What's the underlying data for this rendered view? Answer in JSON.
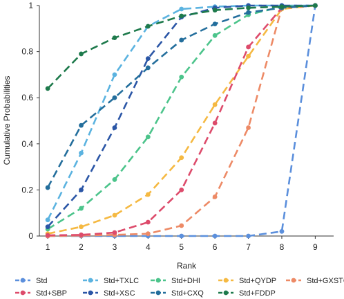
{
  "chart_data": {
    "type": "line",
    "title": "",
    "xlabel": "Rank",
    "ylabel": "Cumulative Probabilities",
    "x": [
      1,
      2,
      3,
      4,
      5,
      6,
      7,
      8,
      9
    ],
    "xlim": [
      0.75,
      9.55
    ],
    "ylim": [
      0,
      1
    ],
    "x_ticks": [
      "1",
      "2",
      "3",
      "4",
      "5",
      "6",
      "7",
      "8",
      "9"
    ],
    "y_ticks": [
      "0",
      "0.2",
      "0.4",
      "0.6",
      "0.8",
      "1"
    ],
    "grid": false,
    "legend_position": "bottom",
    "line_style": "dashed with circle markers",
    "series": [
      {
        "name": "Std",
        "color": "#5b8fdc",
        "values": [
          0.0,
          0.0,
          0.0,
          0.0,
          0.0,
          0.0,
          0.0,
          0.02,
          1.0
        ]
      },
      {
        "name": "Std+TXLC",
        "color": "#5bb3e0",
        "values": [
          0.07,
          0.36,
          0.7,
          0.91,
          0.985,
          0.995,
          1.0,
          1.0,
          1.0
        ]
      },
      {
        "name": "Std+DHI",
        "color": "#4cc48b",
        "values": [
          0.03,
          0.12,
          0.245,
          0.43,
          0.69,
          0.87,
          0.96,
          0.995,
          1.0
        ]
      },
      {
        "name": "Std+QYDP",
        "color": "#f5b942",
        "values": [
          0.01,
          0.04,
          0.09,
          0.18,
          0.34,
          0.57,
          0.78,
          0.985,
          1.0
        ]
      },
      {
        "name": "Std+GXSTC",
        "color": "#ed8a66",
        "values": [
          0.0,
          0.002,
          0.005,
          0.01,
          0.045,
          0.17,
          0.47,
          0.99,
          1.0
        ]
      },
      {
        "name": "Std+SBP",
        "color": "#dd4b6b",
        "values": [
          0.003,
          0.005,
          0.015,
          0.06,
          0.2,
          0.49,
          0.82,
          0.99,
          1.0
        ]
      },
      {
        "name": "Std+XSC",
        "color": "#2b56a6",
        "values": [
          0.04,
          0.2,
          0.47,
          0.77,
          0.95,
          0.99,
          1.0,
          1.0,
          1.0
        ]
      },
      {
        "name": "Std+CXQ",
        "color": "#236e9c",
        "values": [
          0.21,
          0.48,
          0.6,
          0.73,
          0.85,
          0.92,
          0.97,
          0.99,
          1.0
        ]
      },
      {
        "name": "Std+FDDP",
        "color": "#1e7a4c",
        "values": [
          0.64,
          0.79,
          0.86,
          0.91,
          0.955,
          0.98,
          0.99,
          0.995,
          1.0
        ]
      }
    ],
    "legend_order": [
      [
        "Std",
        "Std+TXLC",
        "Std+DHI",
        "Std+QYDP",
        "Std+GXSTC"
      ],
      [
        "Std+SBP",
        "Std+XSC",
        "Std+CXQ",
        "Std+FDDP"
      ]
    ]
  }
}
